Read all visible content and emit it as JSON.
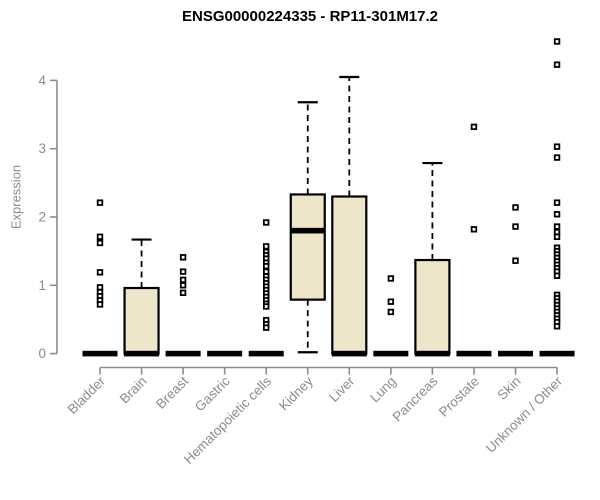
{
  "chart_data": {
    "type": "boxplot",
    "title": "ENSG00000224335 - RP11-301M17.2",
    "ylabel": "Expression",
    "xlabel": "",
    "ylim": [
      0,
      4
    ],
    "yticks": [
      0,
      1,
      2,
      3,
      4
    ],
    "grid": false,
    "legend": "none",
    "categories": [
      "Bladder",
      "Brain",
      "Breast",
      "Gastric",
      "Hematopoietic cells",
      "Kidney",
      "Liver",
      "Lung",
      "Pancreas",
      "Prostate",
      "Skin",
      "Unknown / Other"
    ],
    "boxes": [
      {
        "label": "Bladder",
        "lo": 0,
        "q1": 0,
        "median": 0,
        "q3": 0,
        "hi": 0,
        "outliers": [
          2.21,
          1.71,
          1.62,
          1.19,
          0.97,
          0.9,
          0.84,
          0.78,
          0.72
        ]
      },
      {
        "label": "Brain",
        "lo": 0,
        "q1": 0,
        "median": 0,
        "q3": 0.96,
        "hi": 1.67,
        "outliers": []
      },
      {
        "label": "Breast",
        "lo": 0,
        "q1": 0,
        "median": 0,
        "q3": 0,
        "hi": 0,
        "outliers": [
          1.41,
          1.2,
          1.08,
          1.0,
          0.89
        ]
      },
      {
        "label": "Gastric",
        "lo": 0,
        "q1": 0,
        "median": 0,
        "q3": 0,
        "hi": 0,
        "outliers": []
      },
      {
        "label": "Hematopoietic cells",
        "lo": 0,
        "q1": 0,
        "median": 0,
        "q3": 0,
        "hi": 0,
        "outliers": [
          1.92,
          1.57,
          1.49,
          1.44,
          1.39,
          1.33,
          1.28,
          1.2,
          1.13,
          1.08,
          1.03,
          0.98,
          0.93,
          0.88,
          0.83,
          0.78,
          0.73,
          0.69,
          0.49,
          0.43,
          0.38
        ]
      },
      {
        "label": "Kidney",
        "lo": 0.02,
        "q1": 0.79,
        "median": 1.8,
        "q3": 2.33,
        "hi": 3.68,
        "outliers": []
      },
      {
        "label": "Liver",
        "lo": 0,
        "q1": 0,
        "median": 0,
        "q3": 2.3,
        "hi": 4.05,
        "outliers": []
      },
      {
        "label": "Lung",
        "lo": 0,
        "q1": 0,
        "median": 0,
        "q3": 0,
        "hi": 0,
        "outliers": [
          1.1,
          0.76,
          0.61
        ]
      },
      {
        "label": "Pancreas",
        "lo": 0,
        "q1": 0,
        "median": 0,
        "q3": 1.37,
        "hi": 2.79,
        "outliers": []
      },
      {
        "label": "Prostate",
        "lo": 0,
        "q1": 0,
        "median": 0,
        "q3": 0,
        "hi": 0,
        "outliers": [
          3.32,
          1.82
        ]
      },
      {
        "label": "Skin",
        "lo": 0,
        "q1": 0,
        "median": 0,
        "q3": 0,
        "hi": 0,
        "outliers": [
          2.14,
          1.86,
          1.36
        ]
      },
      {
        "label": "Unknown / Other",
        "lo": 0,
        "q1": 0,
        "median": 0,
        "q3": 0,
        "hi": 0,
        "outliers": [
          4.57,
          4.23,
          3.03,
          2.87,
          2.21,
          2.04,
          1.86,
          1.78,
          1.71,
          1.55,
          1.5,
          1.45,
          1.4,
          1.35,
          1.3,
          1.25,
          1.2,
          1.14,
          0.86,
          0.81,
          0.76,
          0.71,
          0.66,
          0.61,
          0.56,
          0.51,
          0.46,
          0.4
        ]
      }
    ],
    "colors": {
      "box_fill": "#EDE6CB",
      "box_border": "#000000",
      "median": "#000000",
      "whisker": "#000000",
      "outlier_stroke": "#000000",
      "outlier_fill": "#FFFFFF",
      "axis": "#8C8C8C",
      "tick_label": "#8C8C8C",
      "title": "#000000",
      "background": "#FFFFFF"
    }
  }
}
